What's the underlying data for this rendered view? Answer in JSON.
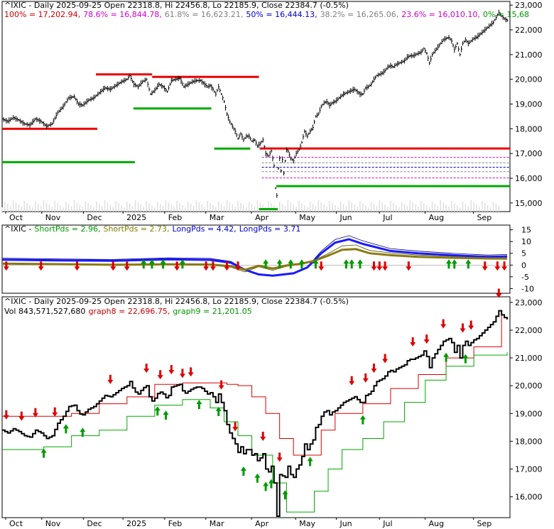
{
  "chart_data": [
    {
      "type": "line",
      "panel": "price",
      "title_parts": [
        {
          "text": "^IXIC - Daily 2025-09-25 Open 22318.8, Hi 22456.8, Lo 22185.9, Close 22384.7 (-0.5%)",
          "color": "#000000"
        }
      ],
      "fib_labels": [
        {
          "text": "100% = 17,202.94,",
          "color": "#cc0000"
        },
        {
          "text": "78.6% = 16,844.78,",
          "color": "#cc00cc"
        },
        {
          "text": "61.8% = 16,623.21,",
          "color": "#808080"
        },
        {
          "text": "50% = 16,444.13,",
          "color": "#0000cc"
        },
        {
          "text": "38.2% = 16,265.06,",
          "color": "#808080"
        },
        {
          "text": "23.6% = 16,010.10,",
          "color": "#cc00cc"
        },
        {
          "text": "0% = 15,68",
          "color": "#009900"
        }
      ],
      "x_tick_labels": [
        "Oct",
        "Nov",
        "Dec",
        "2025",
        "Feb",
        "Mar",
        "Apr",
        "May",
        "Jun",
        "Jul",
        "Aug",
        "Sep"
      ],
      "y_tick_labels": [
        "15,000",
        "16,000",
        "17,000",
        "18,000",
        "19,000",
        "20,000",
        "21,000",
        "22,000",
        "23,000"
      ],
      "y_ticks": [
        15000,
        16000,
        17000,
        18000,
        19000,
        20000,
        21000,
        22000,
        23000
      ],
      "ylim": [
        14650,
        23150
      ],
      "close_path": [
        [
          0,
          18400
        ],
        [
          4,
          18300
        ],
        [
          8,
          18450
        ],
        [
          12,
          18350
        ],
        [
          16,
          18200
        ],
        [
          20,
          18150
        ],
        [
          24,
          18400
        ],
        [
          28,
          18300
        ],
        [
          32,
          18100
        ],
        [
          36,
          18200
        ],
        [
          40,
          18650
        ],
        [
          44,
          18900
        ],
        [
          48,
          19250
        ],
        [
          52,
          19300
        ],
        [
          55,
          19000
        ],
        [
          58,
          18950
        ],
        [
          62,
          19150
        ],
        [
          66,
          19250
        ],
        [
          70,
          19450
        ],
        [
          74,
          19650
        ],
        [
          78,
          19600
        ],
        [
          82,
          19750
        ],
        [
          86,
          19900
        ],
        [
          90,
          20000
        ],
        [
          92,
          20150
        ],
        [
          95,
          19800
        ],
        [
          98,
          19700
        ],
        [
          101,
          19900
        ],
        [
          104,
          20000
        ],
        [
          107,
          19400
        ],
        [
          110,
          19550
        ],
        [
          113,
          19800
        ],
        [
          116,
          19700
        ],
        [
          119,
          19500
        ],
        [
          122,
          19950
        ],
        [
          125,
          20000
        ],
        [
          128,
          20050
        ],
        [
          131,
          19700
        ],
        [
          134,
          19800
        ],
        [
          137,
          19900
        ],
        [
          140,
          19950
        ],
        [
          143,
          19950
        ],
        [
          146,
          19800
        ],
        [
          148,
          19700
        ],
        [
          150,
          19750
        ],
        [
          152,
          19600
        ],
        [
          154,
          19400
        ],
        [
          156,
          19700
        ],
        [
          158,
          19400
        ],
        [
          160,
          19100
        ],
        [
          162,
          18600
        ],
        [
          164,
          18300
        ],
        [
          166,
          18100
        ],
        [
          168,
          17900
        ],
        [
          170,
          17600
        ],
        [
          172,
          17800
        ],
        [
          174,
          17550
        ],
        [
          176,
          17700
        ],
        [
          178,
          17700
        ],
        [
          180,
          17500
        ],
        [
          182,
          17550
        ],
        [
          184,
          17300
        ],
        [
          186,
          17400
        ],
        [
          188,
          17550
        ],
        [
          190,
          17000
        ],
        [
          192,
          16900
        ],
        [
          194,
          17100
        ],
        [
          196,
          16500
        ],
        [
          197,
          15600
        ],
        [
          198,
          15300
        ],
        [
          199,
          16400
        ],
        [
          200,
          16800
        ],
        [
          201,
          16300
        ],
        [
          202,
          16750
        ],
        [
          203,
          16200
        ],
        [
          204,
          16700
        ],
        [
          205,
          17150
        ],
        [
          206,
          17100
        ],
        [
          208,
          16800
        ],
        [
          210,
          16700
        ],
        [
          212,
          17000
        ],
        [
          214,
          17150
        ],
        [
          216,
          17450
        ],
        [
          218,
          17900
        ],
        [
          220,
          17700
        ],
        [
          222,
          17900
        ],
        [
          224,
          18050
        ],
        [
          226,
          18500
        ],
        [
          228,
          18600
        ],
        [
          230,
          18900
        ],
        [
          232,
          19050
        ],
        [
          234,
          19100
        ],
        [
          236,
          18950
        ],
        [
          238,
          19050
        ],
        [
          240,
          19100
        ],
        [
          242,
          19200
        ],
        [
          244,
          19300
        ],
        [
          246,
          19400
        ],
        [
          248,
          19450
        ],
        [
          250,
          19500
        ],
        [
          252,
          19550
        ],
        [
          254,
          19600
        ],
        [
          256,
          19500
        ],
        [
          258,
          19400
        ],
        [
          260,
          19400
        ],
        [
          262,
          19650
        ],
        [
          264,
          19700
        ],
        [
          266,
          19800
        ],
        [
          268,
          20000
        ],
        [
          270,
          20150
        ],
        [
          272,
          20200
        ],
        [
          274,
          20250
        ],
        [
          276,
          20350
        ],
        [
          278,
          20500
        ],
        [
          280,
          20550
        ],
        [
          282,
          20500
        ],
        [
          284,
          20600
        ],
        [
          286,
          20650
        ],
        [
          288,
          20700
        ],
        [
          290,
          20750
        ],
        [
          292,
          20900
        ],
        [
          294,
          20950
        ],
        [
          296,
          20950
        ],
        [
          298,
          21000
        ],
        [
          300,
          21050
        ],
        [
          302,
          21100
        ],
        [
          304,
          21250
        ],
        [
          306,
          21050
        ],
        [
          308,
          20650
        ],
        [
          310,
          21000
        ],
        [
          312,
          21150
        ],
        [
          314,
          21300
        ],
        [
          316,
          21450
        ],
        [
          318,
          21600
        ],
        [
          320,
          21650
        ],
        [
          322,
          21700
        ],
        [
          324,
          21550
        ],
        [
          326,
          21200
        ],
        [
          328,
          21450
        ],
        [
          330,
          21000
        ],
        [
          332,
          21450
        ],
        [
          334,
          21600
        ],
        [
          336,
          21450
        ],
        [
          338,
          21550
        ],
        [
          340,
          21650
        ],
        [
          342,
          21700
        ],
        [
          344,
          21800
        ],
        [
          346,
          21900
        ],
        [
          348,
          22000
        ],
        [
          350,
          22100
        ],
        [
          352,
          22200
        ],
        [
          354,
          22300
        ],
        [
          356,
          22500
        ],
        [
          358,
          22700
        ],
        [
          360,
          22550
        ],
        [
          362,
          22450
        ],
        [
          364,
          22384.7
        ]
      ],
      "x_domain": [
        0,
        364
      ],
      "resistance_lines": [
        {
          "x": [
            0,
            132
          ],
          "y": 18000
        },
        {
          "x": [
            130,
            208
          ],
          "y": 20200
        },
        {
          "x": [
            208,
            356
          ],
          "y": 20100
        },
        {
          "x": [
            357,
            704
          ],
          "y": 17202.94
        }
      ],
      "support_lines": [
        {
          "x": [
            0,
            184
          ],
          "y": 16650
        },
        {
          "x": [
            182,
            290
          ],
          "y": 18820
        },
        {
          "x": [
            294,
            344
          ],
          "y": 17200
        },
        {
          "x": [
            356,
            382
          ],
          "y": 14750
        },
        {
          "x": [
            380,
            704
          ],
          "y": 15680
        }
      ],
      "fib_levels": [
        16844.78,
        16623.21,
        16444.13,
        16265.06,
        16010.1
      ],
      "fib_colors": [
        "#cc00cc",
        "#808080",
        "#0000cc",
        "#808080",
        "#cc00cc"
      ]
    },
    {
      "type": "line",
      "panel": "oscillator",
      "title_parts": [
        {
          "text": "^IXIC -",
          "color": "#000000"
        },
        {
          "text": "ShortPds = 2.96,",
          "color": "#009900"
        },
        {
          "text": "ShortPds = 2.73,",
          "color": "#808000"
        },
        {
          "text": "LongPds = 4.42,",
          "color": "#0000cc"
        },
        {
          "text": "LongPds = 3.71",
          "color": "#0000cc"
        }
      ],
      "y_tick_labels": [
        "15",
        "10",
        "5",
        "0",
        "-5",
        "-10"
      ],
      "y_ticks": [
        15,
        10,
        5,
        0,
        -5,
        -10
      ],
      "ylim": [
        -12,
        17
      ],
      "long_line": [
        [
          0,
          2.3
        ],
        [
          40,
          2.0
        ],
        [
          80,
          1.8
        ],
        [
          120,
          2.4
        ],
        [
          150,
          2.2
        ],
        [
          165,
          1.0
        ],
        [
          175,
          -2.0
        ],
        [
          185,
          -4.0
        ],
        [
          195,
          -4.5
        ],
        [
          210,
          -3.5
        ],
        [
          220,
          -1.0
        ],
        [
          230,
          5.0
        ],
        [
          240,
          9.5
        ],
        [
          250,
          11.0
        ],
        [
          260,
          9.0
        ],
        [
          280,
          6.0
        ],
        [
          300,
          5.0
        ],
        [
          330,
          4.0
        ],
        [
          350,
          3.5
        ],
        [
          364,
          3.71
        ]
      ],
      "short_line": [
        [
          0,
          0.6
        ],
        [
          40,
          0.4
        ],
        [
          80,
          0.1
        ],
        [
          120,
          0.3
        ],
        [
          150,
          0.2
        ],
        [
          165,
          -0.5
        ],
        [
          175,
          -2.0
        ],
        [
          185,
          -0.3
        ],
        [
          195,
          -1.5
        ],
        [
          205,
          -0.2
        ],
        [
          215,
          0.5
        ],
        [
          225,
          1.8
        ],
        [
          235,
          4.0
        ],
        [
          245,
          6.5
        ],
        [
          255,
          6.8
        ],
        [
          265,
          5.0
        ],
        [
          280,
          4.2
        ],
        [
          300,
          3.5
        ],
        [
          330,
          3.0
        ],
        [
          350,
          2.8
        ],
        [
          364,
          2.73
        ]
      ],
      "down_arrows_x": [
        3,
        28,
        54,
        80,
        90,
        126,
        147,
        152,
        162,
        170,
        230,
        268,
        272,
        276,
        293,
        348,
        357,
        362
      ],
      "up_arrows_x": [
        102,
        108,
        116,
        130,
        190,
        200,
        208,
        216,
        226,
        248,
        252,
        258,
        322,
        326,
        336
      ],
      "arrow_y": 0
    },
    {
      "type": "line",
      "panel": "guppy",
      "title_parts": [
        {
          "text": "^IXIC - Daily 2025-09-25 Open 22318.8, Hi 22456.8, Lo 22185.9, Close 22384.7 (-0.5%)",
          "color": "#000000"
        }
      ],
      "title_parts_2": [
        {
          "text": "Vol 843,571,527,680",
          "color": "#000000"
        },
        {
          "text": "graph8 = 22,696.75,",
          "color": "#cc0000"
        },
        {
          "text": "graph9 = 21,201.05",
          "color": "#009900"
        }
      ],
      "x_tick_labels": [
        "Oct",
        "Nov",
        "Dec",
        "2025",
        "Feb",
        "Mar",
        "Apr",
        "May",
        "Jun",
        "Jul",
        "Aug",
        "Sep"
      ],
      "y_tick_labels": [
        "16,000",
        "17,000",
        "18,000",
        "19,000",
        "20,000",
        "21,000",
        "22,000",
        "23,000"
      ],
      "y_ticks": [
        16000,
        17000,
        18000,
        19000,
        20000,
        21000,
        22000,
        23000
      ],
      "ylim": [
        15250,
        23200
      ],
      "upper_band": [
        [
          0,
          18900
        ],
        [
          20,
          18900
        ],
        [
          40,
          18900
        ],
        [
          50,
          19000
        ],
        [
          70,
          19350
        ],
        [
          90,
          19600
        ],
        [
          110,
          20050
        ],
        [
          130,
          20100
        ],
        [
          150,
          20100
        ],
        [
          162,
          20050
        ],
        [
          170,
          20000
        ],
        [
          180,
          19600
        ],
        [
          190,
          19000
        ],
        [
          200,
          18100
        ],
        [
          210,
          17500
        ],
        [
          220,
          17500
        ],
        [
          230,
          18400
        ],
        [
          240,
          19000
        ],
        [
          260,
          19350
        ],
        [
          280,
          19900
        ],
        [
          300,
          20400
        ],
        [
          320,
          21000
        ],
        [
          340,
          21400
        ],
        [
          360,
          22690
        ]
      ],
      "lower_band": [
        [
          0,
          17700
        ],
        [
          30,
          17800
        ],
        [
          50,
          18200
        ],
        [
          70,
          18400
        ],
        [
          90,
          18900
        ],
        [
          110,
          19300
        ],
        [
          130,
          19500
        ],
        [
          150,
          19200
        ],
        [
          160,
          18700
        ],
        [
          170,
          18200
        ],
        [
          180,
          17500
        ],
        [
          195,
          16500
        ],
        [
          205,
          15450
        ],
        [
          215,
          15450
        ],
        [
          225,
          16200
        ],
        [
          235,
          17000
        ],
        [
          245,
          17700
        ],
        [
          260,
          18100
        ],
        [
          275,
          18700
        ],
        [
          290,
          19400
        ],
        [
          305,
          20200
        ],
        [
          320,
          20700
        ],
        [
          340,
          21100
        ],
        [
          364,
          21201.05
        ]
      ],
      "down_arrows_x": [
        3,
        14,
        24,
        38,
        78,
        104,
        114,
        122,
        130,
        136,
        158,
        168,
        188,
        200,
        252,
        262,
        268,
        276,
        296,
        306,
        318,
        332,
        338,
        358
      ],
      "up_arrows_x": [
        30,
        46,
        58,
        112,
        118,
        142,
        156,
        174,
        184,
        190,
        194,
        204,
        222,
        260,
        320,
        334
      ],
      "arrow_anchor": "close_path"
    }
  ]
}
